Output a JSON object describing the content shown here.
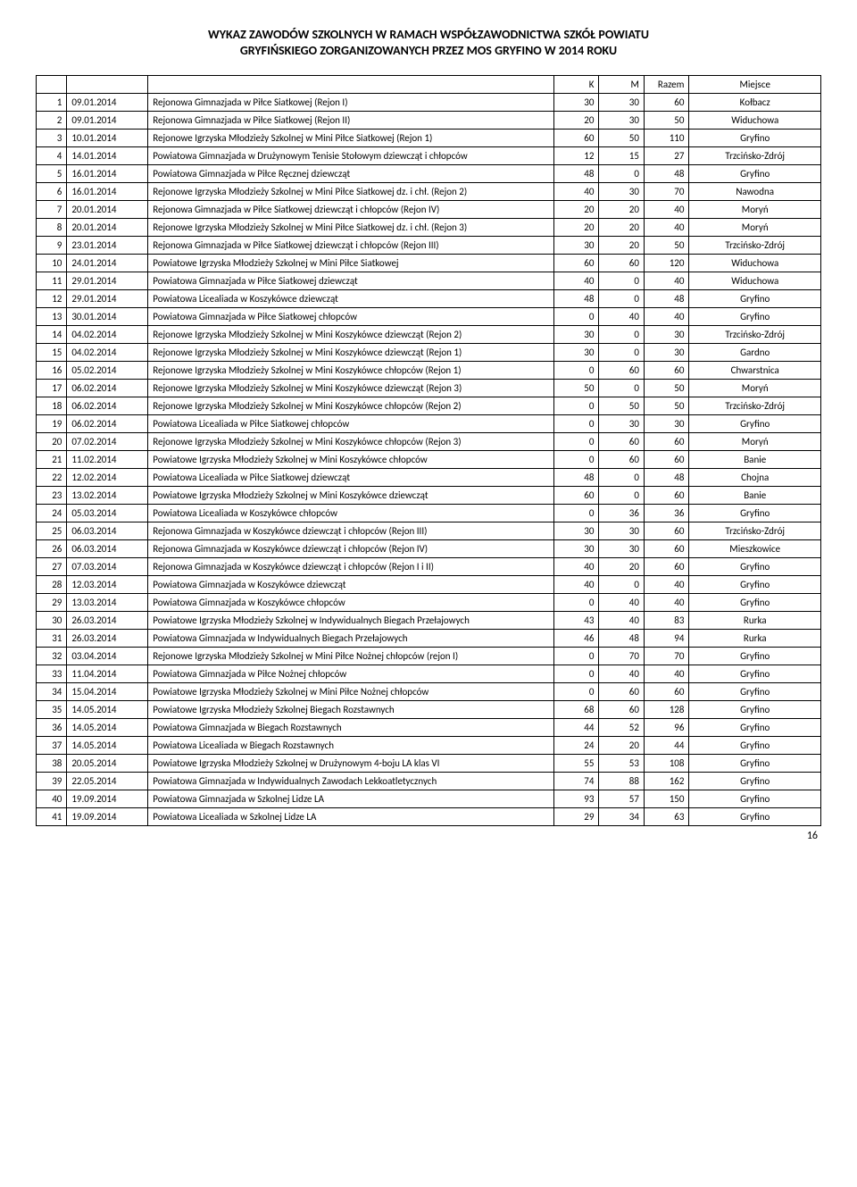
{
  "title_line1": "WYKAZ ZAWODÓW SZKOLNYCH W RAMACH WSPÓŁZAWODNICTWA SZKÓŁ POWIATU",
  "title_line2": "GRYFIŃSKIEGO ZORGANIZOWANYCH PRZEZ MOS GRYFINO W 2014 ROKU",
  "headers": {
    "k": "K",
    "m": "M",
    "razem": "Razem",
    "miejsce": "Miejsce"
  },
  "page_number": "16",
  "rows": [
    {
      "n": "1",
      "date": "09.01.2014",
      "desc": "Rejonowa Gimnazjada w Piłce Siatkowej (Rejon I)",
      "k": "30",
      "m": "30",
      "r": "60",
      "place": "Kołbacz"
    },
    {
      "n": "2",
      "date": "09.01.2014",
      "desc": "Rejonowa Gimnazjada w Piłce Siatkowej (Rejon II)",
      "k": "20",
      "m": "30",
      "r": "50",
      "place": "Widuchowa"
    },
    {
      "n": "3",
      "date": "10.01.2014",
      "desc": "Rejonowe Igrzyska Młodzieży Szkolnej w Mini Piłce Siatkowej (Rejon 1)",
      "k": "60",
      "m": "50",
      "r": "110",
      "place": "Gryfino"
    },
    {
      "n": "4",
      "date": "14.01.2014",
      "desc": "Powiatowa Gimnazjada w Drużynowym Tenisie Stołowym dziewcząt i chłopców",
      "k": "12",
      "m": "15",
      "r": "27",
      "place": "Trzcińsko-Zdrój"
    },
    {
      "n": "5",
      "date": "16.01.2014",
      "desc": "Powiatowa Gimnazjada w Piłce Ręcznej dziewcząt",
      "k": "48",
      "m": "0",
      "r": "48",
      "place": "Gryfino"
    },
    {
      "n": "6",
      "date": "16.01.2014",
      "desc": "Rejonowe Igrzyska Młodzieży Szkolnej w Mini Piłce Siatkowej dz. i chł. (Rejon 2)",
      "k": "40",
      "m": "30",
      "r": "70",
      "place": "Nawodna"
    },
    {
      "n": "7",
      "date": "20.01.2014",
      "desc": "Rejonowa Gimnazjada w Piłce Siatkowej dziewcząt i chłopców (Rejon IV)",
      "k": "20",
      "m": "20",
      "r": "40",
      "place": "Moryń"
    },
    {
      "n": "8",
      "date": "20.01.2014",
      "desc": "Rejonowe Igrzyska Młodzieży Szkolnej w Mini Piłce Siatkowej dz. i chł. (Rejon 3)",
      "k": "20",
      "m": "20",
      "r": "40",
      "place": "Moryń"
    },
    {
      "n": "9",
      "date": "23.01.2014",
      "desc": "Rejonowa Gimnazjada w Piłce Siatkowej dziewcząt i chłopców (Rejon III)",
      "k": "30",
      "m": "20",
      "r": "50",
      "place": "Trzcińsko-Zdrój"
    },
    {
      "n": "10",
      "date": "24.01.2014",
      "desc": "Powiatowe Igrzyska Młodzieży Szkolnej w Mini Piłce Siatkowej",
      "k": "60",
      "m": "60",
      "r": "120",
      "place": "Widuchowa"
    },
    {
      "n": "11",
      "date": "29.01.2014",
      "desc": "Powiatowa Gimnazjada w Piłce Siatkowej dziewcząt",
      "k": "40",
      "m": "0",
      "r": "40",
      "place": "Widuchowa"
    },
    {
      "n": "12",
      "date": "29.01.2014",
      "desc": "Powiatowa Licealiada w Koszykówce dziewcząt",
      "k": "48",
      "m": "0",
      "r": "48",
      "place": "Gryfino"
    },
    {
      "n": "13",
      "date": "30.01.2014",
      "desc": "Powiatowa Gimnazjada w Piłce Siatkowej chłopców",
      "k": "0",
      "m": "40",
      "r": "40",
      "place": "Gryfino"
    },
    {
      "n": "14",
      "date": "04.02.2014",
      "desc": "Rejonowe Igrzyska Młodzieży Szkolnej w Mini Koszykówce dziewcząt (Rejon 2)",
      "k": "30",
      "m": "0",
      "r": "30",
      "place": "Trzcińsko-Zdrój"
    },
    {
      "n": "15",
      "date": "04.02.2014",
      "desc": "Rejonowe Igrzyska Młodzieży Szkolnej w Mini Koszykówce dziewcząt (Rejon 1)",
      "k": "30",
      "m": "0",
      "r": "30",
      "place": "Gardno"
    },
    {
      "n": "16",
      "date": "05.02.2014",
      "desc": "Rejonowe Igrzyska Młodzieży Szkolnej w Mini Koszykówce chłopców (Rejon 1)",
      "k": "0",
      "m": "60",
      "r": "60",
      "place": "Chwarstnica"
    },
    {
      "n": "17",
      "date": "06.02.2014",
      "desc": "Rejonowe Igrzyska Młodzieży Szkolnej w Mini Koszykówce dziewcząt (Rejon 3)",
      "k": "50",
      "m": "0",
      "r": "50",
      "place": "Moryń"
    },
    {
      "n": "18",
      "date": "06.02.2014",
      "desc": "Rejonowe Igrzyska Młodzieży Szkolnej w Mini Koszykówce chłopców (Rejon 2)",
      "k": "0",
      "m": "50",
      "r": "50",
      "place": "Trzcińsko-Zdrój"
    },
    {
      "n": "19",
      "date": "06.02.2014",
      "desc": "Powiatowa Licealiada w Piłce Siatkowej chłopców",
      "k": "0",
      "m": "30",
      "r": "30",
      "place": "Gryfino"
    },
    {
      "n": "20",
      "date": "07.02.2014",
      "desc": "Rejonowe Igrzyska Młodzieży Szkolnej w Mini Koszykówce chłopców (Rejon 3)",
      "k": "0",
      "m": "60",
      "r": "60",
      "place": "Moryń"
    },
    {
      "n": "21",
      "date": "11.02.2014",
      "desc": "Powiatowe Igrzyska Młodzieży Szkolnej w Mini Koszykówce chłopców",
      "k": "0",
      "m": "60",
      "r": "60",
      "place": "Banie"
    },
    {
      "n": "22",
      "date": "12.02.2014",
      "desc": "Powiatowa Licealiada w Piłce Siatkowej dziewcząt",
      "k": "48",
      "m": "0",
      "r": "48",
      "place": "Chojna"
    },
    {
      "n": "23",
      "date": "13.02.2014",
      "desc": "Powiatowe Igrzyska Młodzieży Szkolnej w Mini Koszykówce dziewcząt",
      "k": "60",
      "m": "0",
      "r": "60",
      "place": "Banie"
    },
    {
      "n": "24",
      "date": "05.03.2014",
      "desc": "Powiatowa Licealiada w Koszykówce chłopców",
      "k": "0",
      "m": "36",
      "r": "36",
      "place": "Gryfino"
    },
    {
      "n": "25",
      "date": "06.03.2014",
      "desc": "Rejonowa Gimnazjada w Koszykówce dziewcząt i chłopców (Rejon III)",
      "k": "30",
      "m": "30",
      "r": "60",
      "place": "Trzcińsko-Zdrój"
    },
    {
      "n": "26",
      "date": "06.03.2014",
      "desc": "Rejonowa Gimnazjada w Koszykówce dziewcząt i chłopców (Rejon IV)",
      "k": "30",
      "m": "30",
      "r": "60",
      "place": "Mieszkowice"
    },
    {
      "n": "27",
      "date": "07.03.2014",
      "desc": "Rejonowa Gimnazjada w Koszykówce dziewcząt i chłopców (Rejon I i II)",
      "k": "40",
      "m": "20",
      "r": "60",
      "place": "Gryfino"
    },
    {
      "n": "28",
      "date": "12.03.2014",
      "desc": "Powiatowa Gimnazjada w Koszykówce dziewcząt",
      "k": "40",
      "m": "0",
      "r": "40",
      "place": "Gryfino"
    },
    {
      "n": "29",
      "date": "13.03.2014",
      "desc": "Powiatowa Gimnazjada w Koszykówce chłopców",
      "k": "0",
      "m": "40",
      "r": "40",
      "place": "Gryfino"
    },
    {
      "n": "30",
      "date": "26.03.2014",
      "desc": "Powiatowe Igrzyska Młodzieży Szkolnej w Indywidualnych Biegach Przełajowych",
      "k": "43",
      "m": "40",
      "r": "83",
      "place": "Rurka"
    },
    {
      "n": "31",
      "date": "26.03.2014",
      "desc": "Powiatowa Gimnazjada w Indywidualnych Biegach Przełajowych",
      "k": "46",
      "m": "48",
      "r": "94",
      "place": "Rurka"
    },
    {
      "n": "32",
      "date": "03.04.2014",
      "desc": "Rejonowe Igrzyska Młodzieży Szkolnej w Mini Piłce Nożnej chłopców (rejon I)",
      "k": "0",
      "m": "70",
      "r": "70",
      "place": "Gryfino"
    },
    {
      "n": "33",
      "date": "11.04.2014",
      "desc": "Powiatowa Gimnazjada w Piłce Nożnej chłopców",
      "k": "0",
      "m": "40",
      "r": "40",
      "place": "Gryfino"
    },
    {
      "n": "34",
      "date": "15.04.2014",
      "desc": "Powiatowe Igrzyska Młodzieży Szkolnej w Mini Piłce Nożnej chłopców",
      "k": "0",
      "m": "60",
      "r": "60",
      "place": "Gryfino"
    },
    {
      "n": "35",
      "date": "14.05.2014",
      "desc": "Powiatowe Igrzyska Młodzieży Szkolnej Biegach Rozstawnych",
      "k": "68",
      "m": "60",
      "r": "128",
      "place": "Gryfino"
    },
    {
      "n": "36",
      "date": "14.05.2014",
      "desc": "Powiatowa Gimnazjada w Biegach Rozstawnych",
      "k": "44",
      "m": "52",
      "r": "96",
      "place": "Gryfino"
    },
    {
      "n": "37",
      "date": "14.05.2014",
      "desc": "Powiatowa Licealiada w Biegach Rozstawnych",
      "k": "24",
      "m": "20",
      "r": "44",
      "place": "Gryfino"
    },
    {
      "n": "38",
      "date": "20.05.2014",
      "desc": "Powiatowe Igrzyska Młodzieży Szkolnej w Drużynowym 4-boju LA klas VI",
      "k": "55",
      "m": "53",
      "r": "108",
      "place": "Gryfino"
    },
    {
      "n": "39",
      "date": "22.05.2014",
      "desc": "Powiatowa Gimnazjada w Indywidualnych Zawodach Lekkoatletycznych",
      "k": "74",
      "m": "88",
      "r": "162",
      "place": "Gryfino"
    },
    {
      "n": "40",
      "date": "19.09.2014",
      "desc": "Powiatowa Gimnazjada w Szkolnej Lidze LA",
      "k": "93",
      "m": "57",
      "r": "150",
      "place": "Gryfino"
    },
    {
      "n": "41",
      "date": "19.09.2014",
      "desc": "Powiatowa Licealiada w Szkolnej Lidze LA",
      "k": "29",
      "m": "34",
      "r": "63",
      "place": "Gryfino"
    }
  ]
}
